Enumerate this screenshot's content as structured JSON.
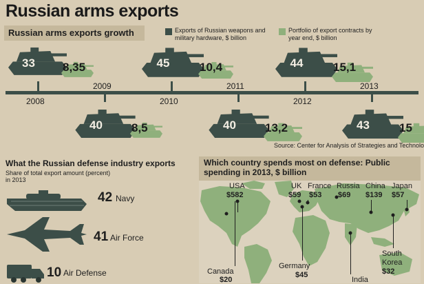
{
  "title": "Russian arms exports",
  "growth": {
    "title": "Russian arms exports growth",
    "legend": [
      {
        "label": "Exports of Russian weapons and military hardware, $ billion",
        "color": "#3c4e48"
      },
      {
        "label": "Portfolio of export contracts by year end, $ billion",
        "color": "#8fb07c"
      }
    ]
  },
  "source": "Source: Center for Analysis of Strategies and Technologies",
  "exports_by_type": {
    "title": "What the Russian defense industry exports",
    "subtitle": "Share of total export amount (percent) in 2013",
    "items": [
      {
        "value": "42",
        "label": "Navy",
        "icon": "ship-icon"
      },
      {
        "value": "41",
        "label": "Air Force",
        "icon": "fighter-jet-icon"
      },
      {
        "value": "10",
        "label": "Air Defense",
        "icon": "truck-icon"
      }
    ]
  },
  "defense_spending": {
    "title": "Which country spends most on defense: Public spending in 2013, $ billion",
    "countries": [
      {
        "name": "USA",
        "value": "$582"
      },
      {
        "name": "UK",
        "value": "$59"
      },
      {
        "name": "France",
        "value": "$53"
      },
      {
        "name": "Russia",
        "value": "$69"
      },
      {
        "name": "China",
        "value": "$139"
      },
      {
        "name": "Japan",
        "value": "$57"
      },
      {
        "name": "South Korea",
        "value": "$32"
      },
      {
        "name": "Canada",
        "value": "$20"
      },
      {
        "name": "Germany",
        "value": "$45"
      },
      {
        "name": "India",
        "value": ""
      }
    ]
  },
  "chart_data": [
    {
      "type": "bar",
      "title": "Russian arms exports growth",
      "categories": [
        "2008",
        "2009",
        "2010",
        "2011",
        "2012",
        "2013"
      ],
      "series": [
        {
          "name": "Exports of Russian weapons and military hardware, $ billion",
          "values": [
            33,
            40,
            45,
            40,
            44,
            43
          ],
          "labels": [
            "33",
            "40",
            "45",
            "40",
            "44",
            "43"
          ]
        },
        {
          "name": "Portfolio of export contracts by year end, $ billion",
          "values": [
            8.35,
            8.5,
            10.4,
            13.2,
            15.1,
            15
          ],
          "labels": [
            "8,35",
            "8,5",
            "10,4",
            "13,2",
            "15,1",
            "15"
          ]
        }
      ]
    },
    {
      "type": "bar",
      "title": "What the Russian defense industry exports",
      "categories": [
        "Navy",
        "Air Force",
        "Air Defense"
      ],
      "values": [
        42,
        41,
        10
      ]
    }
  ]
}
